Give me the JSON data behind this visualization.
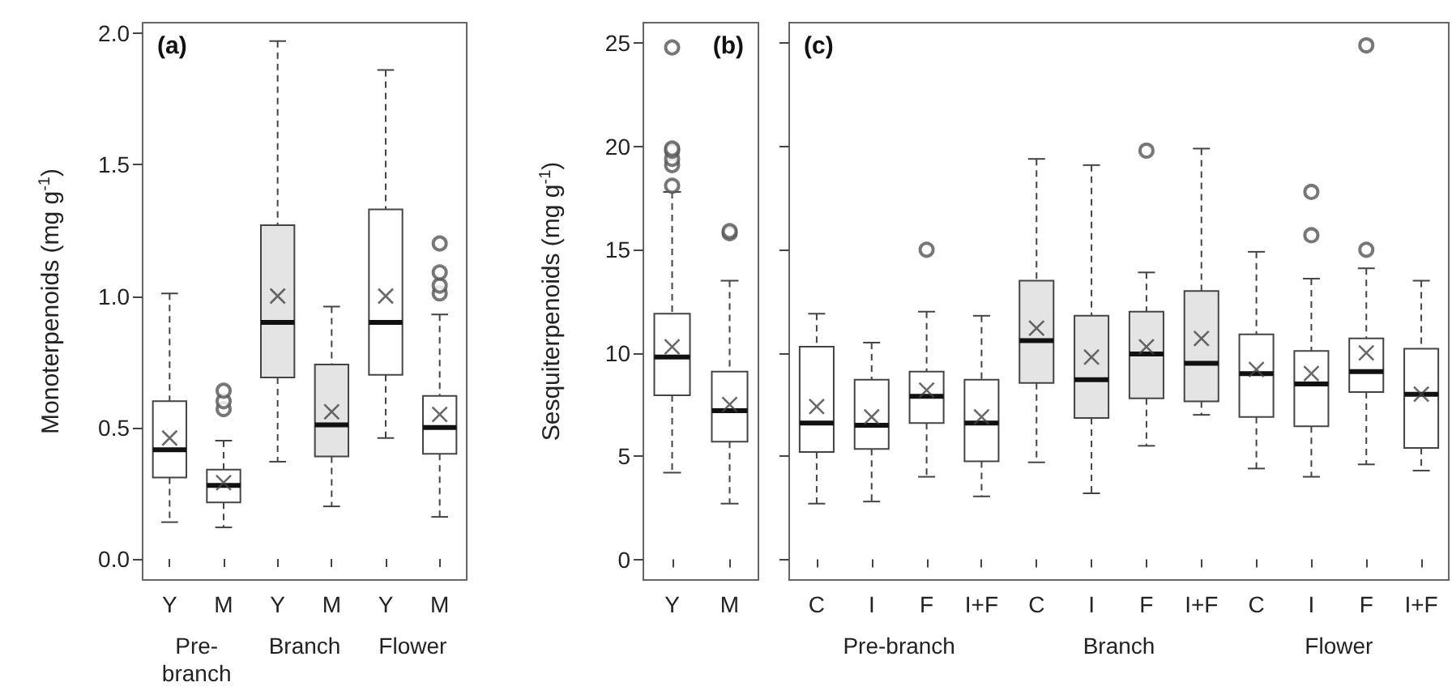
{
  "chart_data": [
    {
      "type": "box",
      "title": "(a)",
      "ylabel": "Monoterpenoids (mg g$^{-1}$)",
      "categories": [
        "Y",
        "M",
        "Y",
        "M",
        "Y",
        "M"
      ],
      "annotations": [
        "Pre-branch",
        "Branch",
        "Flower"
      ],
      "ylim": [
        -0.08,
        2.04
      ],
      "yticks": [
        {
          "value": 0,
          "label": "0.0"
        },
        0.5,
        {
          "value": 1,
          "label": "1.0"
        },
        1.5,
        {
          "value": 2,
          "label": "2.0"
        }
      ],
      "grid": false,
      "marker": "cross",
      "series": [
        {
          "colors": [
            "#ffffff",
            "#ffffff",
            "#e4e4e4",
            "#e4e4e4",
            "#ffffff",
            "#ffffff"
          ],
          "boxes": [
            {
              "low": 0.14,
              "q1": 0.31,
              "median": 0.415,
              "q3": 0.6,
              "high": 1.01,
              "mean": 0.46
            },
            {
              "low": 0.12,
              "q1": 0.215,
              "median": 0.28,
              "q3": 0.34,
              "high": 0.45,
              "mean": 0.29,
              "outliers": [
                0.57,
                0.6,
                0.64
              ]
            },
            {
              "low": 0.37,
              "q1": 0.69,
              "median": 0.9,
              "q3": 1.27,
              "high": 1.97,
              "mean": 1.0
            },
            {
              "low": 0.2,
              "q1": 0.39,
              "median": 0.51,
              "q3": 0.74,
              "high": 0.96,
              "mean": 0.56
            },
            {
              "low": 0.46,
              "q1": 0.7,
              "median": 0.9,
              "q3": 1.33,
              "high": 1.86,
              "mean": 1.0
            },
            {
              "low": 0.16,
              "q1": 0.4,
              "median": 0.5,
              "q3": 0.62,
              "high": 0.93,
              "mean": 0.55,
              "outliers": [
                1.01,
                1.04,
                1.09,
                1.2
              ]
            }
          ]
        }
      ]
    },
    {
      "type": "box",
      "title": "(b)",
      "ylabel": "Sesquiterpenoids (mg g$^{-1}$)",
      "categories": [
        "Y",
        "M"
      ],
      "ylim": [
        -1,
        26
      ],
      "yticks": [
        0,
        5,
        10,
        15,
        20,
        25
      ],
      "grid": false,
      "marker": "cross",
      "series": [
        {
          "colors": [
            "#ffffff",
            "#ffffff"
          ],
          "boxes": [
            {
              "low": 4.2,
              "q1": 7.95,
              "median": 9.8,
              "q3": 11.9,
              "high": 17.8,
              "mean": 10.3,
              "outliers": [
                18.1,
                19.1,
                19.4,
                19.8,
                19.9,
                24.8
              ]
            },
            {
              "low": 2.7,
              "q1": 5.7,
              "median": 7.2,
              "q3": 9.1,
              "high": 13.5,
              "mean": 7.5,
              "outliers": [
                15.8,
                15.9
              ]
            }
          ]
        }
      ]
    },
    {
      "type": "box",
      "title": "(c)",
      "categories": [
        "C",
        "I",
        "F",
        "I+F",
        "C",
        "I",
        "F",
        "I+F",
        "C",
        "I",
        "F",
        "I+F"
      ],
      "annotations": [
        "Pre-branch",
        "Branch",
        "Flower"
      ],
      "ylim": [
        -1,
        26
      ],
      "yticks": [
        0,
        5,
        10,
        15,
        20,
        25
      ],
      "tick_labels": "x",
      "grid": false,
      "marker": "cross",
      "series": [
        {
          "colors": [
            "#ffffff",
            "#ffffff",
            "#ffffff",
            "#ffffff",
            "#e4e4e4",
            "#e4e4e4",
            "#e4e4e4",
            "#e4e4e4",
            "#ffffff",
            "#ffffff",
            "#ffffff",
            "#ffffff"
          ],
          "boxes": [
            {
              "low": 2.7,
              "q1": 5.2,
              "median": 6.6,
              "q3": 10.3,
              "high": 11.9,
              "mean": 7.4
            },
            {
              "low": 2.8,
              "q1": 5.35,
              "median": 6.5,
              "q3": 8.7,
              "high": 10.5,
              "mean": 6.9
            },
            {
              "low": 4.0,
              "q1": 6.6,
              "median": 7.9,
              "q3": 9.1,
              "high": 12.0,
              "mean": 8.2,
              "outliers": [
                15.0
              ]
            },
            {
              "low": 3.05,
              "q1": 4.75,
              "median": 6.6,
              "q3": 8.7,
              "high": 11.8,
              "mean": 6.9
            },
            {
              "low": 4.7,
              "q1": 8.55,
              "median": 10.6,
              "q3": 13.5,
              "high": 19.4,
              "mean": 11.2
            },
            {
              "low": 3.2,
              "q1": 6.85,
              "median": 8.7,
              "q3": 11.8,
              "high": 19.1,
              "mean": 9.8
            },
            {
              "low": 5.5,
              "q1": 7.8,
              "median": 9.95,
              "q3": 12.0,
              "high": 13.9,
              "mean": 10.3,
              "outliers": [
                19.8
              ]
            },
            {
              "low": 7.0,
              "q1": 7.65,
              "median": 9.5,
              "q3": 13.0,
              "high": 19.9,
              "mean": 10.7
            },
            {
              "low": 4.4,
              "q1": 6.9,
              "median": 9.0,
              "q3": 10.9,
              "high": 14.9,
              "mean": 9.2
            },
            {
              "low": 4.0,
              "q1": 6.45,
              "median": 8.5,
              "q3": 10.1,
              "high": 13.6,
              "mean": 9.0,
              "outliers": [
                15.7,
                17.8
              ]
            },
            {
              "low": 4.6,
              "q1": 8.1,
              "median": 9.1,
              "q3": 10.7,
              "high": 14.1,
              "mean": 10.0,
              "outliers": [
                15.0,
                24.9
              ]
            },
            {
              "low": 4.3,
              "q1": 5.4,
              "median": 8.0,
              "q3": 10.2,
              "high": 13.5,
              "mean": 8.0
            }
          ]
        }
      ]
    }
  ]
}
